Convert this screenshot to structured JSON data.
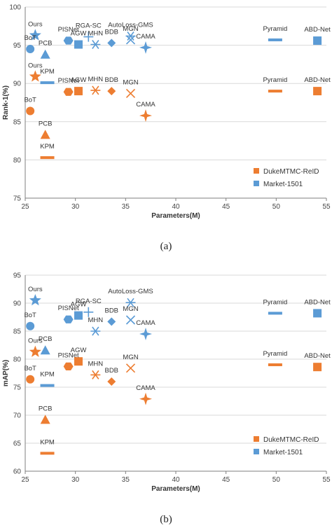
{
  "colors": {
    "DukeMTMC-ReID": "#ED7D31",
    "Market-1501": "#5B9BD5",
    "axis": "#7f7f7f",
    "grid": "#d9d9d9"
  },
  "chart_data": [
    {
      "type": "scatter",
      "caption": "(a)",
      "xlabel": "Parameters(M)",
      "ylabel": "Rank-1(%)",
      "xlim": [
        25,
        55
      ],
      "ylim": [
        75,
        100
      ],
      "xticks": [
        25,
        30,
        35,
        40,
        45,
        50,
        55
      ],
      "yticks": [
        75,
        80,
        85,
        90,
        95,
        100
      ],
      "legend_position": "bottom-right",
      "series": [
        {
          "name": "DukeMTMC-ReID",
          "points": [
            {
              "label": "Ours",
              "x": 26.0,
              "y": 90.9,
              "marker": "star"
            },
            {
              "label": "BoT",
              "x": 25.5,
              "y": 86.4,
              "marker": "circle"
            },
            {
              "label": "PCB",
              "x": 27.0,
              "y": 83.3,
              "marker": "triangle"
            },
            {
              "label": "KPM",
              "x": 27.2,
              "y": 80.3,
              "marker": "dash"
            },
            {
              "label": "PISNet",
              "x": 29.3,
              "y": 88.9,
              "marker": "hexagon"
            },
            {
              "label": "AGW",
              "x": 30.3,
              "y": 89.0,
              "marker": "square"
            },
            {
              "label": "MHN",
              "x": 32.0,
              "y": 89.1,
              "marker": "asterisk"
            },
            {
              "label": "BDB",
              "x": 33.6,
              "y": 89.0,
              "marker": "diamond"
            },
            {
              "label": "MGN",
              "x": 35.5,
              "y": 88.7,
              "marker": "x"
            },
            {
              "label": "CAMA",
              "x": 37.0,
              "y": 85.8,
              "marker": "fourstar"
            },
            {
              "label": "Pyramid",
              "x": 49.9,
              "y": 89.0,
              "marker": "dash"
            },
            {
              "label": "ABD-Net",
              "x": 54.1,
              "y": 89.0,
              "marker": "square"
            }
          ]
        },
        {
          "name": "Market-1501",
          "points": [
            {
              "label": "Ours",
              "x": 26.0,
              "y": 96.3,
              "marker": "star"
            },
            {
              "label": "BoT",
              "x": 25.5,
              "y": 94.5,
              "marker": "circle"
            },
            {
              "label": "PCB",
              "x": 27.0,
              "y": 93.8,
              "marker": "triangle"
            },
            {
              "label": "KPM",
              "x": 27.2,
              "y": 90.1,
              "marker": "dash"
            },
            {
              "label": "PISNet",
              "x": 29.3,
              "y": 95.6,
              "marker": "hexagon"
            },
            {
              "label": "AGW",
              "x": 30.3,
              "y": 95.1,
              "marker": "square"
            },
            {
              "label": "RGA-SC",
              "x": 31.3,
              "y": 96.1,
              "marker": "plus"
            },
            {
              "label": "MHN",
              "x": 32.0,
              "y": 95.1,
              "marker": "asterisk"
            },
            {
              "label": "BDB",
              "x": 33.6,
              "y": 95.3,
              "marker": "diamond"
            },
            {
              "label": "AutoLoss-GMS",
              "x": 35.5,
              "y": 96.2,
              "marker": "asterisk"
            },
            {
              "label": "MGN",
              "x": 35.5,
              "y": 95.7,
              "marker": "x"
            },
            {
              "label": "CAMA",
              "x": 37.0,
              "y": 94.7,
              "marker": "fourstar"
            },
            {
              "label": "Pyramid",
              "x": 49.9,
              "y": 95.7,
              "marker": "dash"
            },
            {
              "label": "ABD-Net",
              "x": 54.1,
              "y": 95.6,
              "marker": "square"
            }
          ]
        }
      ]
    },
    {
      "type": "scatter",
      "caption": "(b)",
      "xlabel": "Parameters(M)",
      "ylabel": "mAP(%)",
      "xlim": [
        25,
        55
      ],
      "ylim": [
        60,
        95
      ],
      "xticks": [
        25,
        30,
        35,
        40,
        45,
        50,
        55
      ],
      "yticks": [
        60,
        65,
        70,
        75,
        80,
        85,
        90,
        95
      ],
      "legend_position": "bottom-right",
      "series": [
        {
          "name": "DukeMTMC-ReID",
          "points": [
            {
              "label": "Ours",
              "x": 26.0,
              "y": 81.3,
              "marker": "star"
            },
            {
              "label": "BoT",
              "x": 25.5,
              "y": 76.4,
              "marker": "circle"
            },
            {
              "label": "PCB",
              "x": 27.0,
              "y": 69.2,
              "marker": "triangle"
            },
            {
              "label": "KPM",
              "x": 27.2,
              "y": 63.2,
              "marker": "dash"
            },
            {
              "label": "PISNet",
              "x": 29.3,
              "y": 78.7,
              "marker": "hexagon"
            },
            {
              "label": "AGW",
              "x": 30.3,
              "y": 79.6,
              "marker": "square"
            },
            {
              "label": "MHN",
              "x": 32.0,
              "y": 77.2,
              "marker": "asterisk"
            },
            {
              "label": "BDB",
              "x": 33.6,
              "y": 76.0,
              "marker": "diamond"
            },
            {
              "label": "MGN",
              "x": 35.5,
              "y": 78.4,
              "marker": "x"
            },
            {
              "label": "CAMA",
              "x": 37.0,
              "y": 72.9,
              "marker": "fourstar"
            },
            {
              "label": "Pyramid",
              "x": 49.9,
              "y": 79.0,
              "marker": "dash"
            },
            {
              "label": "ABD-Net",
              "x": 54.1,
              "y": 78.6,
              "marker": "square"
            }
          ]
        },
        {
          "name": "Market-1501",
          "points": [
            {
              "label": "Ours",
              "x": 26.0,
              "y": 90.5,
              "marker": "star"
            },
            {
              "label": "BoT",
              "x": 25.5,
              "y": 85.9,
              "marker": "circle"
            },
            {
              "label": "PCB",
              "x": 27.0,
              "y": 81.6,
              "marker": "triangle"
            },
            {
              "label": "KPM",
              "x": 27.2,
              "y": 75.3,
              "marker": "dash"
            },
            {
              "label": "PISNet",
              "x": 29.3,
              "y": 87.1,
              "marker": "hexagon"
            },
            {
              "label": "AGW",
              "x": 30.3,
              "y": 87.8,
              "marker": "square"
            },
            {
              "label": "RGA-SC",
              "x": 31.3,
              "y": 88.4,
              "marker": "plus"
            },
            {
              "label": "MHN",
              "x": 32.0,
              "y": 85.0,
              "marker": "asterisk"
            },
            {
              "label": "BDB",
              "x": 33.6,
              "y": 86.7,
              "marker": "diamond"
            },
            {
              "label": "AutoLoss-GMS",
              "x": 35.5,
              "y": 90.1,
              "marker": "asterisk"
            },
            {
              "label": "MGN",
              "x": 35.5,
              "y": 87.0,
              "marker": "x"
            },
            {
              "label": "CAMA",
              "x": 37.0,
              "y": 84.5,
              "marker": "fourstar"
            },
            {
              "label": "Pyramid",
              "x": 49.9,
              "y": 88.2,
              "marker": "dash"
            },
            {
              "label": "ABD-Net",
              "x": 54.1,
              "y": 88.2,
              "marker": "square"
            }
          ]
        }
      ]
    }
  ]
}
